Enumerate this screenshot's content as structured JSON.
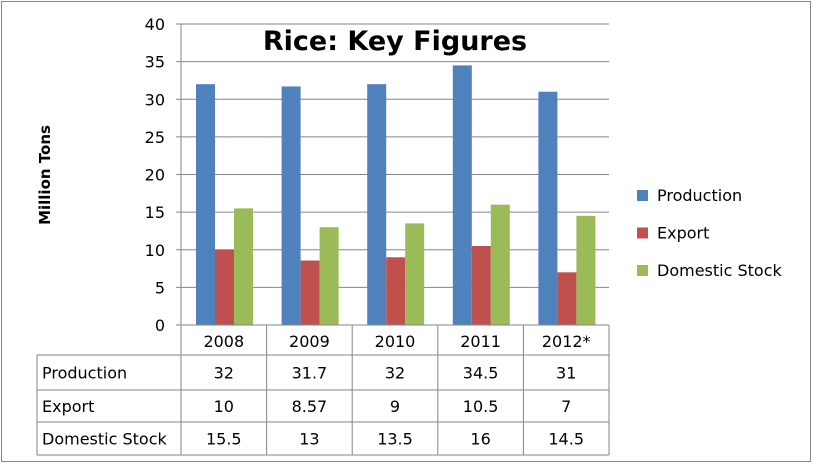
{
  "chart_data": {
    "type": "bar",
    "title": "Rice: Key Figures",
    "ylabel": "Million Tons",
    "xlabel": "",
    "ylim": [
      0,
      40
    ],
    "yticks": [
      0,
      5,
      10,
      15,
      20,
      25,
      30,
      35,
      40
    ],
    "grid": true,
    "legend_position": "right",
    "categories": [
      "2008",
      "2009",
      "2010",
      "2011",
      "2012*"
    ],
    "series": [
      {
        "name": "Production",
        "color": "#4F81BD",
        "values": [
          32,
          31.7,
          32,
          34.5,
          31
        ],
        "labels": [
          "32",
          "31.7",
          "32",
          "34.5",
          "31"
        ]
      },
      {
        "name": "Export",
        "color": "#C0504D",
        "values": [
          10,
          8.57,
          9,
          10.5,
          7
        ],
        "labels": [
          "10",
          "8.57",
          "9",
          "10.5",
          "7"
        ]
      },
      {
        "name": "Domestic Stock",
        "color": "#9BBB59",
        "values": [
          15.5,
          13,
          13.5,
          16,
          14.5
        ],
        "labels": [
          "15.5",
          "13",
          "13.5",
          "16",
          "14.5"
        ]
      }
    ]
  }
}
